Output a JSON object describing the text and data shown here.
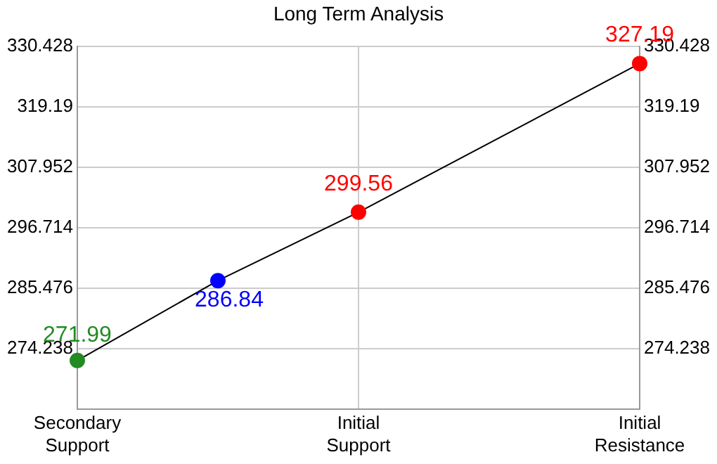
{
  "chart_data": {
    "type": "line",
    "title": "Long Term Analysis",
    "categories": [
      "Secondary Support",
      null,
      "Initial Support",
      null,
      "Initial Resistance"
    ],
    "series": [
      {
        "color": "#000000",
        "colors": [
          "#228b22",
          "#0000ff",
          "#ff0000",
          null,
          "#ff0000"
        ],
        "values": [
          271.99,
          286.84,
          299.56,
          null,
          327.19
        ]
      }
    ],
    "ylim": [
      263,
      330.428
    ],
    "yticks": [
      274.238,
      285.476,
      296.714,
      307.952,
      319.19,
      330.428
    ],
    "y2lim": [
      263,
      330.428
    ],
    "y2ticks": [
      274.238,
      285.476,
      296.714,
      307.952,
      319.19,
      330.428
    ],
    "grid": true,
    "marker": "circle",
    "data_labels": true
  }
}
